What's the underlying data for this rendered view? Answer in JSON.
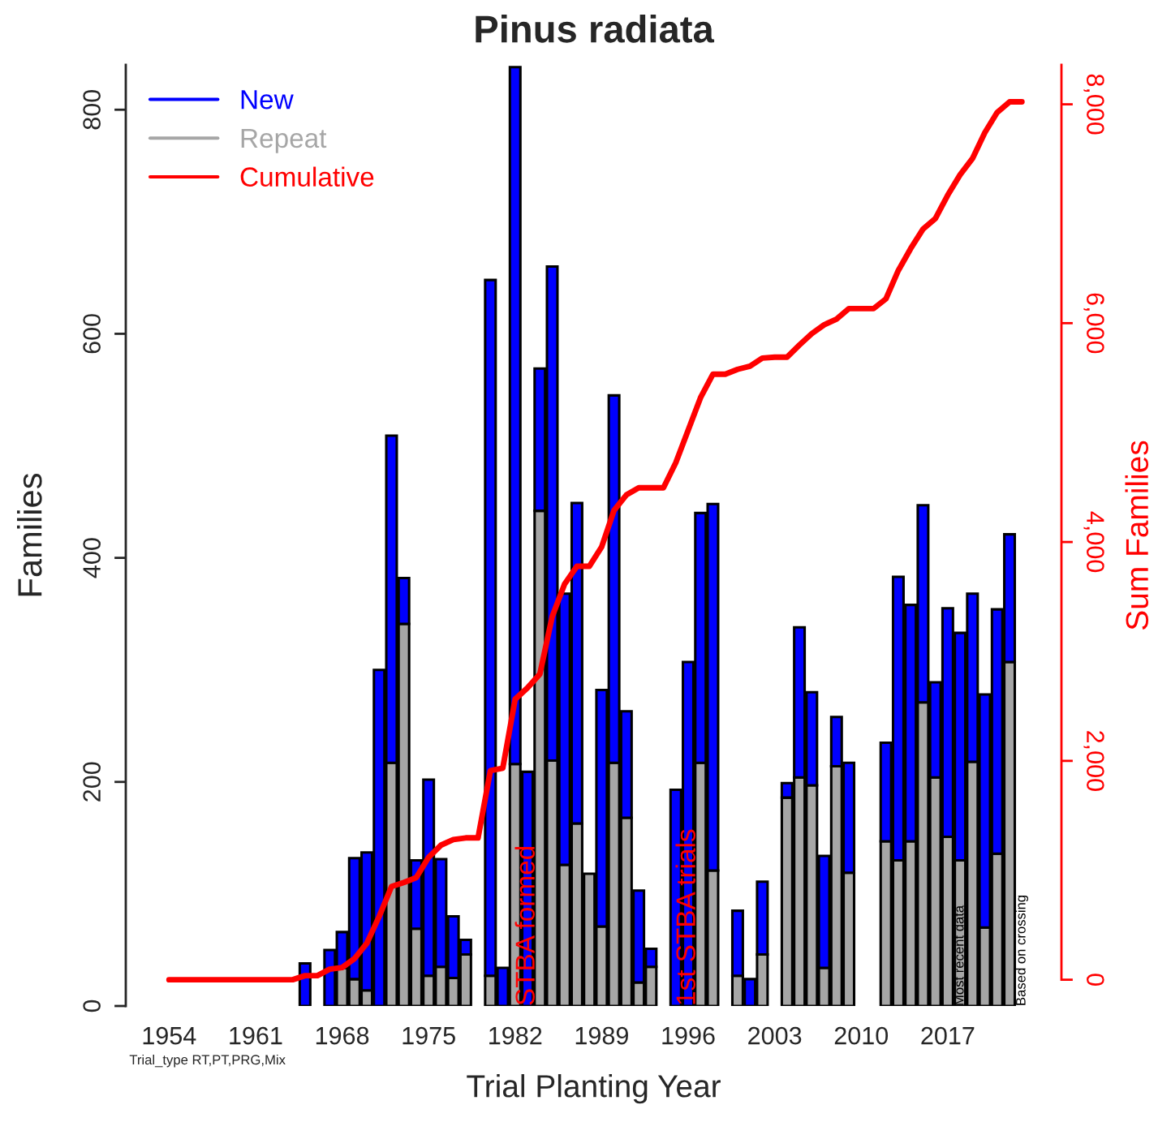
{
  "chart_data": {
    "type": "bar",
    "title": "Pinus radiata",
    "xlabel": "Trial Planting Year",
    "ylabel": "Families",
    "y2label": "Sum Families",
    "stacked": true,
    "x": [
      1954,
      1955,
      1956,
      1957,
      1958,
      1959,
      1960,
      1961,
      1962,
      1963,
      1964,
      1965,
      1966,
      1967,
      1968,
      1969,
      1970,
      1971,
      1972,
      1973,
      1974,
      1975,
      1976,
      1977,
      1978,
      1979,
      1980,
      1981,
      1982,
      1983,
      1984,
      1985,
      1986,
      1987,
      1988,
      1989,
      1990,
      1991,
      1992,
      1993,
      1994,
      1995,
      1996,
      1997,
      1998,
      1999,
      2000,
      2001,
      2002,
      2003,
      2004,
      2005,
      2006,
      2007,
      2008,
      2009,
      2010,
      2011,
      2012,
      2013,
      2014,
      2015,
      2016,
      2017,
      2018,
      2019,
      2020,
      2021,
      2022,
      2023
    ],
    "series": [
      {
        "name": "Repeat",
        "color": "#a6a6a6",
        "values": [
          0,
          0,
          0,
          0,
          0,
          0,
          0,
          0,
          0,
          0,
          0,
          0,
          0,
          0,
          34,
          24,
          14,
          0,
          217,
          341,
          69,
          27,
          35,
          25,
          46,
          0,
          27,
          0,
          216,
          0,
          442,
          219,
          126,
          163,
          118,
          71,
          217,
          168,
          21,
          35,
          0,
          0,
          0,
          217,
          121,
          0,
          27,
          0,
          46,
          0,
          186,
          204,
          197,
          34,
          214,
          119,
          0,
          0,
          147,
          130,
          147,
          271,
          204,
          151,
          130,
          218,
          70,
          136,
          307,
          0
        ]
      },
      {
        "name": "New",
        "color": "#0000ff",
        "values": [
          0,
          0,
          0,
          0,
          0,
          0,
          0,
          0,
          0,
          0,
          0,
          38,
          0,
          50,
          32,
          108,
          123,
          300,
          292,
          41,
          61,
          175,
          96,
          55,
          13,
          0,
          621,
          34,
          622,
          209,
          127,
          441,
          242,
          286,
          0,
          211,
          328,
          95,
          82,
          16,
          0,
          193,
          307,
          223,
          327,
          0,
          58,
          24,
          65,
          0,
          13,
          134,
          83,
          100,
          44,
          98,
          0,
          0,
          88,
          253,
          211,
          176,
          85,
          204,
          203,
          150,
          208,
          218,
          114,
          0
        ]
      },
      {
        "name": "Cumulative",
        "type": "line",
        "axis": "y2",
        "color": "#ff0000",
        "values": [
          0,
          0,
          0,
          0,
          0,
          0,
          0,
          0,
          0,
          0,
          0,
          37,
          37,
          96,
          111,
          193,
          333,
          578,
          852,
          889,
          933,
          1119,
          1230,
          1281,
          1296,
          1296,
          1911,
          1933,
          2563,
          2667,
          2793,
          3319,
          3615,
          3778,
          3778,
          3956,
          4289,
          4430,
          4496,
          4496,
          4496,
          4726,
          5022,
          5319,
          5533,
          5533,
          5578,
          5607,
          5681,
          5689,
          5689,
          5800,
          5904,
          5985,
          6037,
          6133,
          6133,
          6133,
          6222,
          6481,
          6681,
          6859,
          6956,
          7170,
          7356,
          7504,
          7741,
          7926,
          8022,
          8022
        ]
      }
    ],
    "xlim": [
      1950.5,
      2026.2
    ],
    "xticks": [
      1954,
      1961,
      1968,
      1975,
      1982,
      1989,
      1996,
      2003,
      2010,
      2017
    ],
    "ylim": [
      0,
      840
    ],
    "yticks": [
      0,
      200,
      400,
      600,
      800
    ],
    "y2lim": [
      -240,
      8360
    ],
    "y2ticks": [
      {
        "value": 0,
        "label": "0"
      },
      {
        "value": 2000,
        "label": "2,000"
      },
      {
        "value": 4000,
        "label": "4,000"
      },
      {
        "value": 6000,
        "label": "6,000"
      },
      {
        "value": 8000,
        "label": "8,000"
      }
    ],
    "grid": false,
    "legend": "top left",
    "annotations": [
      {
        "text": "STBA formed",
        "x": 1983,
        "y": 0
      },
      {
        "text": "1st STBA trials",
        "x": 1996,
        "y": 0
      },
      {
        "text": "Most recent data",
        "x": 2018,
        "y": 0
      },
      {
        "text": "Based on crossing",
        "x": 2023,
        "y": 0
      },
      "Trial_type RT,PT,PRG,Mix"
    ]
  }
}
